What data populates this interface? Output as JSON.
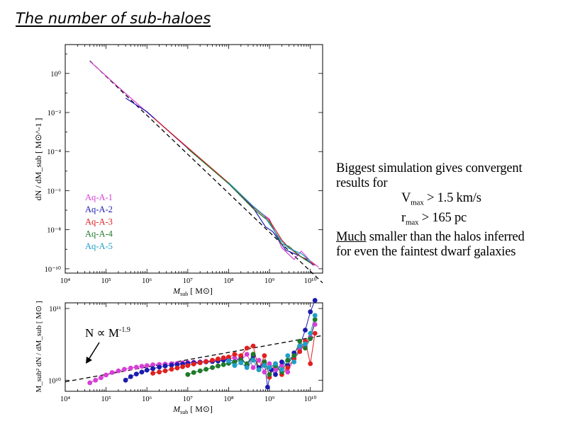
{
  "slide": {
    "title": "The number of sub-haloes"
  },
  "notes": {
    "line1": "Biggest simulation gives convergent",
    "line2": "results for",
    "vmax_sym": "V",
    "vmax_sub": "max",
    "vmax_val": "> 1.5 km/s",
    "rmax_sym": "r",
    "rmax_sub": "max",
    "rmax_val": ">  165 pc",
    "line5_u": "Much",
    "line5_rest": " smaller than the halos inferred",
    "line6": "for even the faintest dwarf galaxies"
  },
  "colors": {
    "Aq-A-1": "#d63fd6",
    "Aq-A-2": "#1b1bb0",
    "Aq-A-3": "#e02020",
    "Aq-A-4": "#1f7a2a",
    "Aq-A-5": "#1f9fc8"
  },
  "chart_data": [
    {
      "type": "line",
      "xlabel_main": "M",
      "xlabel_sub": "sub",
      "xlabel_unit": "[ M⊙]",
      "ylabel": "dN / dM_sub [ M⊙^-1 ]",
      "xscale": "log",
      "yscale": "log",
      "xlim": [
        10000.0,
        20000000000.0
      ],
      "ylim": [
        6e-11,
        30.0
      ],
      "xticks": [
        "10⁴",
        "10⁵",
        "10⁶",
        "10⁷",
        "10⁸",
        "10⁹",
        "10¹⁰"
      ],
      "yticks": [
        "10⁰",
        "10⁻²",
        "10⁻⁴",
        "10⁻⁶",
        "10⁻⁸",
        "10⁻¹⁰"
      ],
      "legend": [
        "Aq-A-1",
        "Aq-A-2",
        "Aq-A-3",
        "Aq-A-4",
        "Aq-A-5"
      ],
      "legend_position": "left",
      "reference_line": {
        "style": "dashed",
        "x": [
          40000.0,
          20000000000.0
        ],
        "y": [
          4.4,
          1.9e-11
        ]
      },
      "series": [
        {
          "name": "Aq-A-1",
          "x": [
            40000.0,
            200000.0,
            1000000.0,
            10000000.0,
            100000000.0,
            400000000.0,
            1000000000.0,
            2000000000.0,
            4000000000.0,
            6000000000.0,
            10000000000.0,
            16000000000.0
          ],
          "y": [
            4.2,
            0.2,
            0.0105,
            0.00015,
            2.4e-06,
            1.4e-07,
            3.5e-08,
            1.2e-09,
            3e-10,
            8e-10,
            2.5e-10,
            1.2e-10
          ]
        },
        {
          "name": "Aq-A-2",
          "x": [
            300000.0,
            1000000.0,
            10000000.0,
            100000000.0,
            400000000.0,
            800000000.0,
            1200000000.0,
            2500000000.0,
            5000000000.0,
            8000000000.0,
            12000000000.0
          ],
          "y": [
            0.055,
            0.011,
            0.00015,
            2.3e-06,
            1.3e-07,
            1.4e-08,
            8e-09,
            9e-10,
            5e-10,
            3e-10,
            1.5e-10
          ]
        },
        {
          "name": "Aq-A-3",
          "x": [
            1500000.0,
            10000000.0,
            100000000.0,
            400000000.0,
            1000000000.0,
            2000000000.0,
            3000000000.0,
            6000000000.0,
            9000000000.0,
            13000000000.0
          ],
          "y": [
            0.005,
            0.00016,
            2.5e-06,
            1.5e-07,
            3e-08,
            3e-09,
            1.2e-09,
            4e-10,
            3e-10,
            1.5e-10
          ]
        },
        {
          "name": "Aq-A-4",
          "x": [
            10000000.0,
            100000000.0,
            400000000.0,
            1000000000.0,
            2000000000.0,
            3000000000.0,
            6000000000.0,
            10000000000.0
          ],
          "y": [
            0.00014,
            2.3e-06,
            1.2e-07,
            2.5e-08,
            1.8e-09,
            1.4e-09,
            4e-10,
            2e-10
          ]
        },
        {
          "name": "Aq-A-5",
          "x": [
            100000000.0,
            400000000.0,
            700000000.0,
            1000000000.0,
            2000000000.0,
            3000000000.0,
            6000000000.0,
            10000000000.0
          ],
          "y": [
            2.6e-06,
            1.6e-07,
            6e-08,
            2e-08,
            2.5e-09,
            1.1e-09,
            6e-10,
            2.5e-10
          ]
        }
      ]
    },
    {
      "type": "scatter",
      "xlabel_main": "M",
      "xlabel_sub": "sub",
      "xlabel_unit": "[ M⊙]",
      "ylabel": "M_sub² dN / dM_sub [ M⊙ ]",
      "xscale": "log",
      "yscale": "log",
      "xlim": [
        10000.0,
        20000000000.0
      ],
      "ylim": [
        7000000000.0,
        120000000000.0
      ],
      "xticks": [
        "10⁴",
        "10⁵",
        "10⁶",
        "10⁷",
        "10⁸",
        "10⁹",
        "10¹⁰"
      ],
      "yticks": [
        "10¹¹",
        "10¹⁰"
      ],
      "annotation_main": "N ∝ M",
      "annotation_exp": "-1.9",
      "reference_line": {
        "style": "dashed",
        "x": [
          10000.0,
          20000000000.0
        ],
        "y": [
          9500000000.0,
          42000000000.0
        ]
      },
      "series": [
        {
          "name": "Aq-A-1",
          "x": [
            40000.0,
            55000.0,
            75000.0,
            100000.0,
            140000.0,
            200000.0,
            280000.0,
            400000.0,
            550000.0,
            750000.0,
            1000000.0,
            1400000.0,
            2000000.0,
            2800000.0,
            4000000.0,
            5500000.0,
            7500000.0,
            10000000.0,
            14000000.0,
            20000000.0,
            28000000.0,
            40000000.0,
            55000000.0,
            75000000.0,
            100000000.0,
            140000000.0,
            200000000.0,
            280000000.0,
            400000000.0,
            550000000.0,
            750000000.0,
            1000000000.0,
            1400000000.0,
            2000000000.0,
            2800000000.0,
            4000000000.0,
            5500000000.0,
            7500000000.0,
            10000000000.0,
            13000000000.0
          ],
          "y": [
            9200000000.0,
            10000000000.0,
            10800000000.0,
            11800000000.0,
            12800000000.0,
            13500000000.0,
            14200000000.0,
            14800000000.0,
            15200000000.0,
            15600000000.0,
            16000000000.0,
            16400000000.0,
            16600000000.0,
            16800000000.0,
            17000000000.0,
            17200000000.0,
            17400000000.0,
            17600000000.0,
            17800000000.0,
            18000000000.0,
            18300000000.0,
            18600000000.0,
            19000000000.0,
            19500000000.0,
            20000000000.0,
            20500000000.0,
            19000000000.0,
            23000000000.0,
            15000000000.0,
            19000000000.0,
            13000000000.0,
            17000000000.0,
            14000000000.0,
            16000000000.0,
            13000000000.0,
            20000000000.0,
            27000000000.0,
            30000000000.0,
            40000000000.0,
            60000000000.0
          ]
        },
        {
          "name": "Aq-A-2",
          "x": [
            300000.0,
            400000.0,
            550000.0,
            750000.0,
            1000000.0,
            1400000.0,
            2000000.0,
            2800000.0,
            4000000.0,
            5500000.0,
            7500000.0,
            10000000.0,
            14000000.0,
            20000000.0,
            28000000.0,
            40000000.0,
            55000000.0,
            75000000.0,
            100000000.0,
            140000000.0,
            200000000.0,
            280000000.0,
            400000000.0,
            550000000.0,
            750000000.0,
            900000000.0,
            1100000000.0,
            1400000000.0,
            2000000000.0,
            2800000000.0,
            4000000000.0,
            5500000000.0,
            7500000000.0,
            10000000000.0,
            13000000000.0
          ],
          "y": [
            10000000000.0,
            11200000000.0,
            12200000000.0,
            13000000000.0,
            13800000000.0,
            14500000000.0,
            15200000000.0,
            15800000000.0,
            16200000000.0,
            16500000000.0,
            16800000000.0,
            17200000000.0,
            17500000000.0,
            17800000000.0,
            18000000000.0,
            18200000000.0,
            18500000000.0,
            19000000000.0,
            19500000000.0,
            18000000000.0,
            21000000000.0,
            16000000000.0,
            22000000000.0,
            15000000000.0,
            18000000000.0,
            8000000000.0,
            14000000000.0,
            12000000000.0,
            18000000000.0,
            16000000000.0,
            24000000000.0,
            30000000000.0,
            50000000000.0,
            90000000000.0,
            130000000000.0
          ]
        },
        {
          "name": "Aq-A-3",
          "x": [
            1400000.0,
            2000000.0,
            2800000.0,
            4000000.0,
            5500000.0,
            7500000.0,
            10000000.0,
            14000000.0,
            20000000.0,
            28000000.0,
            40000000.0,
            55000000.0,
            75000000.0,
            100000000.0,
            140000000.0,
            200000000.0,
            280000000.0,
            400000000.0,
            550000000.0,
            750000000.0,
            1000000000.0,
            1400000000.0,
            2000000000.0,
            2800000000.0,
            4000000000.0,
            5500000000.0,
            7500000000.0,
            10000000000.0,
            13000000000.0
          ],
          "y": [
            12500000000.0,
            13000000000.0,
            13500000000.0,
            14200000000.0,
            14800000000.0,
            15400000000.0,
            16000000000.0,
            16800000000.0,
            17500000000.0,
            18200000000.0,
            19000000000.0,
            19800000000.0,
            20500000000.0,
            21000000000.0,
            23000000000.0,
            22000000000.0,
            28000000000.0,
            30000000000.0,
            14000000000.0,
            22000000000.0,
            11000000000.0,
            17000000000.0,
            12000000000.0,
            15000000000.0,
            20000000000.0,
            25000000000.0,
            35000000000.0,
            17000000000.0,
            45000000000.0
          ]
        },
        {
          "name": "Aq-A-4",
          "x": [
            10000000.0,
            14000000.0,
            20000000.0,
            28000000.0,
            40000000.0,
            55000000.0,
            75000000.0,
            100000000.0,
            140000000.0,
            200000000.0,
            280000000.0,
            400000000.0,
            550000000.0,
            750000000.0,
            1000000000.0,
            1400000000.0,
            2000000000.0,
            2800000000.0,
            4000000000.0,
            5500000000.0,
            7500000000.0,
            10000000000.0,
            13000000000.0
          ],
          "y": [
            12000000000.0,
            12800000000.0,
            13500000000.0,
            14200000000.0,
            15000000000.0,
            15800000000.0,
            16500000000.0,
            17200000000.0,
            18000000000.0,
            19000000000.0,
            17000000000.0,
            23000000000.0,
            14000000000.0,
            18000000000.0,
            12000000000.0,
            16000000000.0,
            13000000000.0,
            19000000000.0,
            22000000000.0,
            35000000000.0,
            28000000000.0,
            38000000000.0,
            70000000000.0
          ]
        },
        {
          "name": "Aq-A-5",
          "x": [
            100000000.0,
            140000000.0,
            200000000.0,
            280000000.0,
            400000000.0,
            550000000.0,
            750000000.0,
            1000000000.0,
            1400000000.0,
            2000000000.0,
            2800000000.0,
            4000000000.0,
            5500000000.0,
            7500000000.0,
            10000000000.0,
            13000000000.0
          ],
          "y": [
            18500000000.0,
            16000000000.0,
            17500000000.0,
            15000000000.0,
            19000000000.0,
            14000000000.0,
            16000000000.0,
            15000000000.0,
            17000000000.0,
            14000000000.0,
            22000000000.0,
            18000000000.0,
            30000000000.0,
            32000000000.0,
            45000000000.0,
            80000000000.0
          ]
        }
      ]
    }
  ]
}
